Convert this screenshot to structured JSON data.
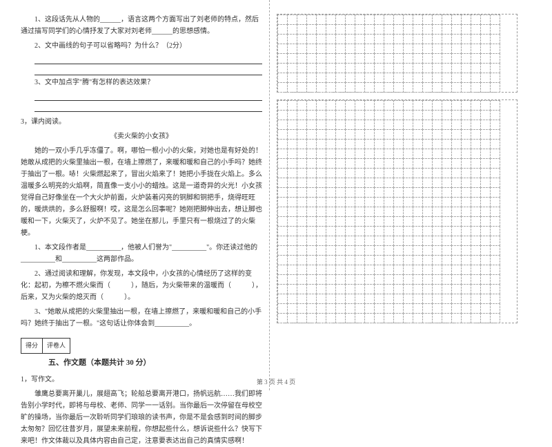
{
  "left": {
    "q1": "1、这段话先从人物的______，语言这两个方面写出了刘老师的特点，然后通过描写同学们的心情抒发了大家对刘老师______的思想感情。",
    "q2": "2、文中画线的句子可以省略吗？为什么？（2分）",
    "q3": "3、文中加点字\"腾\"有怎样的表达效果？",
    "keneiTitle": "3，课内阅读。",
    "storyTitle": "《卖火柴的小女孩》",
    "story1": "她的一双小手几乎冻僵了。啊，哪怕一根小小的火柴，对她也是有好处的！她敢从成把的火柴里抽出一根，在墙上擦燃了，来暖和暖和自己的小手吗？她终于抽出了一根。哧！火柴燃起来了，冒出火焰来了！她把小手拢在火焰上。多么温暖多么明亮的火焰啊，简直像一支小小的蜡烛。这是一道奇异的火光！小女孩觉得自己好像坐在一个大火炉前面，火炉装着闪亮的铜脚和铜把手，烧得旺旺的，暖烘烘的，多么舒服啊！哎，这是怎么回事呢？她刚把脚伸出去，想让脚也暖和一下，火柴灭了，火炉不见了。她坐在那儿，手里只有一根烧过了的火柴梗。",
    "sq1a": "1、本文段作者是__________，他被人们誉为\"__________\"。你还读过他的__________和__________这两部作品。",
    "sq2": "2、通过阅读和理解，你发现，本文段中，小女孩的心情经历了这样的变化：起初，为檫不燃火柴而（　　　），随后，为火柴带来的温暖而（　　　），后来，又为火柴的熄灭而（　　　）。",
    "sq3": "3、\"她敢从成把的火柴里抽出一根，在墙上擦燃了，来暖和暖和自己的小手吗？她终于抽出了一根。\"这句话让你体会到__________。",
    "scoreLabels": {
      "a": "得分",
      "b": "评卷人"
    },
    "sectionTitle": "五、作文题（本题共计 30 分）",
    "compTitle": "1，写作文。",
    "comp1": "雏鹰总要离开巢儿，展翅高飞；轮船总要离开港口，扬帆远航……我们即将告别小学时代，即将与母校、老师、同学一一话别。当你最后一次停留在母校空旷的操场，当你最后一次聆听同学们琅琅的读书声，你是不是会感到时间的脚步太匆匆？回忆往昔岁月，展望未来前程，你想起些什么，想诉说些什么？快写下来吧！作文体裁以及具体内容由自己定，注意要表达出自己的真情实感啊！"
  },
  "grid": {
    "rows_block1": 8,
    "rows_block2": 23,
    "cols": 23
  },
  "footer": "第 3 页  共 4 页",
  "style": {
    "page_bg": "#ffffff",
    "text_color": "#333333",
    "grid_color": "#aaaaaa",
    "font_family": "SimSun",
    "base_fontsize": 10
  }
}
